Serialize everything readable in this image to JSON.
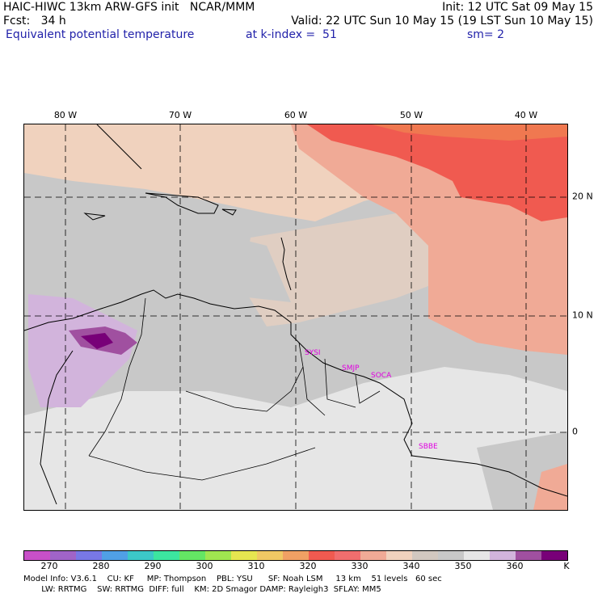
{
  "header": {
    "line1_left": "HAIC-HIWC 13km ARW-GFS init   NCAR/MMM",
    "line1_right": "Init: 12 UTC Sat 09 May 15",
    "line2_left": "Fcst:   34 h",
    "line2_right": "Valid: 22 UTC Sun 10 May 15 (19 LST Sun 10 May 15)",
    "line3_field": "Equivalent potential temperature",
    "line3_level": "at k-index =  51",
    "line3_smooth": "sm= 2"
  },
  "map": {
    "lon_labels": [
      "80 W",
      "70 W",
      "60 W",
      "50 W",
      "40 W"
    ],
    "lat_labels": [
      "20 N",
      "10 N",
      "0"
    ],
    "stations": [
      "SYSI",
      "SMJP",
      "SOCA",
      "SBBE"
    ],
    "colors": {
      "land_line": "#000000",
      "grid": "#000000"
    }
  },
  "colorbar": {
    "labels": [
      "270",
      "280",
      "290",
      "300",
      "310",
      "320",
      "330",
      "340",
      "350",
      "360",
      "K"
    ],
    "colors": [
      "#c850c8",
      "#a064c8",
      "#7878e6",
      "#50a0e6",
      "#3cc8c8",
      "#3ce6a0",
      "#64e664",
      "#a0e650",
      "#e6e650",
      "#f0c864",
      "#f0a064",
      "#f05a50",
      "#f06e6e",
      "#f0aa96",
      "#f0d2be",
      "#d2c8c0",
      "#c8c8c8",
      "#e6e6e6",
      "#d2b4dc",
      "#a050a0",
      "#780078"
    ]
  },
  "footer": {
    "line1": "Model Info: V3.6.1    CU: KF     MP: Thompson    PBL: YSU      SF: Noah LSM     13 km    51 levels   60 sec",
    "line2": "       LW: RRTMG    SW: RRTMG  DIFF: full    KM: 2D Smagor DAMP: Rayleigh3  SFLAY: MM5"
  }
}
